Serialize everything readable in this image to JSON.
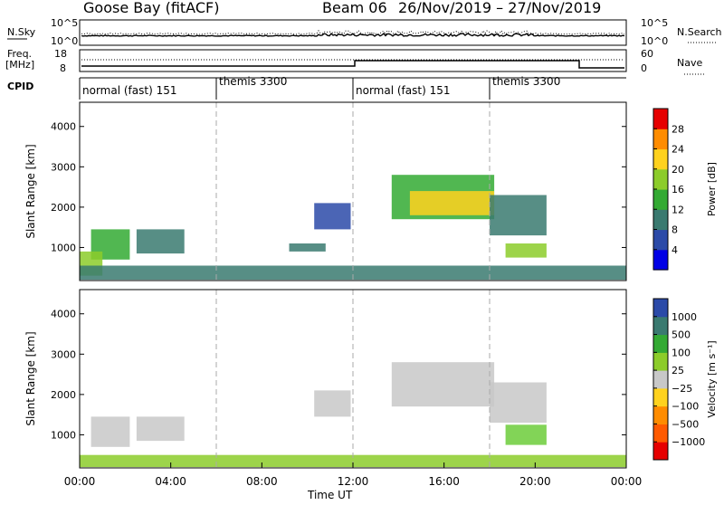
{
  "header": {
    "station": "Goose Bay (fitACF)",
    "beam": "Beam 06",
    "date_range": "26/Nov/2019 – 27/Nov/2019"
  },
  "noise_panel": {
    "left_label": "N.Sky",
    "right_label": "N.Search",
    "left_ticks": [
      "10^5",
      "10^0"
    ],
    "right_ticks": [
      "10^5",
      "10^0"
    ]
  },
  "freq_panel": {
    "left_label_1": "Freq.",
    "left_label_2": "[MHz]",
    "left_ticks": [
      "18",
      "8"
    ],
    "right_label": "Nave",
    "right_ticks": [
      "60",
      "0"
    ]
  },
  "cpid": {
    "label": "CPID",
    "segments": [
      {
        "start_hour": 0,
        "end_hour": 6,
        "name": "normal (fast) 151"
      },
      {
        "start_hour": 6,
        "end_hour": 12,
        "name": "themis 3300"
      },
      {
        "start_hour": 12,
        "end_hour": 18,
        "name": "normal (fast) 151"
      },
      {
        "start_hour": 18,
        "end_hour": 24,
        "name": "themis 3300"
      }
    ]
  },
  "chart_data": [
    {
      "type": "heatmap",
      "quantity": "Power",
      "ylabel": "Slant Range [km]",
      "ylim": [
        180,
        4600
      ],
      "y_ticks": [
        1000,
        2000,
        3000,
        4000
      ],
      "colorbar_label": "Power [dB]",
      "colorbar_ticks": [
        "4",
        "8",
        "12",
        "16",
        "20",
        "24",
        "28"
      ],
      "colors": [
        "#0000e6",
        "#2b4aa8",
        "#3a7a70",
        "#33aa33",
        "#8ccc2a",
        "#ffd21e",
        "#ff8c00",
        "#e60000"
      ],
      "regions": [
        {
          "x": [
            0.5,
            2.2
          ],
          "y": [
            700,
            1450
          ],
          "level": 3
        },
        {
          "x": [
            0.0,
            1.0
          ],
          "y": [
            300,
            900
          ],
          "level": 4
        },
        {
          "x": [
            2.5,
            4.6
          ],
          "y": [
            850,
            1450
          ],
          "level": 2
        },
        {
          "x": [
            10.3,
            11.9
          ],
          "y": [
            1450,
            2100
          ],
          "level": 1
        },
        {
          "x": [
            9.2,
            10.8
          ],
          "y": [
            900,
            1100
          ],
          "level": 2
        },
        {
          "x": [
            13.7,
            18.2
          ],
          "y": [
            1700,
            2800
          ],
          "level": 3
        },
        {
          "x": [
            14.5,
            18.2
          ],
          "y": [
            1800,
            2400
          ],
          "level": 5
        },
        {
          "x": [
            18.0,
            20.5
          ],
          "y": [
            1300,
            2300
          ],
          "level": 2
        },
        {
          "x": [
            18.7,
            20.5
          ],
          "y": [
            750,
            1100
          ],
          "level": 4
        },
        {
          "x": [
            0.0,
            24.0
          ],
          "y": [
            200,
            550
          ],
          "level": 2
        }
      ]
    },
    {
      "type": "heatmap",
      "quantity": "Velocity",
      "xlabel": "Time UT",
      "ylabel": "Slant Range [km]",
      "ylim": [
        180,
        4600
      ],
      "y_ticks": [
        1000,
        2000,
        3000,
        4000
      ],
      "x_ticks": [
        "00:00",
        "04:00",
        "08:00",
        "12:00",
        "16:00",
        "20:00",
        "00:00"
      ],
      "xlim_hours": [
        0,
        24
      ],
      "colorbar_label": "Velocity [m s⁻¹]",
      "colorbar_ticks": [
        "−1000",
        "−500",
        "−100",
        "−25",
        "25",
        "100",
        "500",
        "1000"
      ],
      "colors": [
        "#e60000",
        "#ff5a00",
        "#ff8c00",
        "#ffd21e",
        "#c8c8c8",
        "#8ccc2a",
        "#33aa33",
        "#3a7a70",
        "#2b4aa8"
      ],
      "regions": [
        {
          "x": [
            0.5,
            2.2
          ],
          "y": [
            700,
            1450
          ],
          "color": "#c8c8c8"
        },
        {
          "x": [
            2.5,
            4.6
          ],
          "y": [
            850,
            1450
          ],
          "color": "#c8c8c8"
        },
        {
          "x": [
            10.3,
            11.9
          ],
          "y": [
            1450,
            2100
          ],
          "color": "#c8c8c8"
        },
        {
          "x": [
            13.7,
            18.2
          ],
          "y": [
            1700,
            2800
          ],
          "color": "#c8c8c8"
        },
        {
          "x": [
            18.0,
            20.5
          ],
          "y": [
            1300,
            2300
          ],
          "color": "#c8c8c8"
        },
        {
          "x": [
            18.7,
            20.5
          ],
          "y": [
            750,
            1250
          ],
          "color": "#6ccc3a"
        },
        {
          "x": [
            0.0,
            24.0
          ],
          "y": [
            200,
            500
          ],
          "color": "#8ccc2a"
        }
      ]
    }
  ]
}
